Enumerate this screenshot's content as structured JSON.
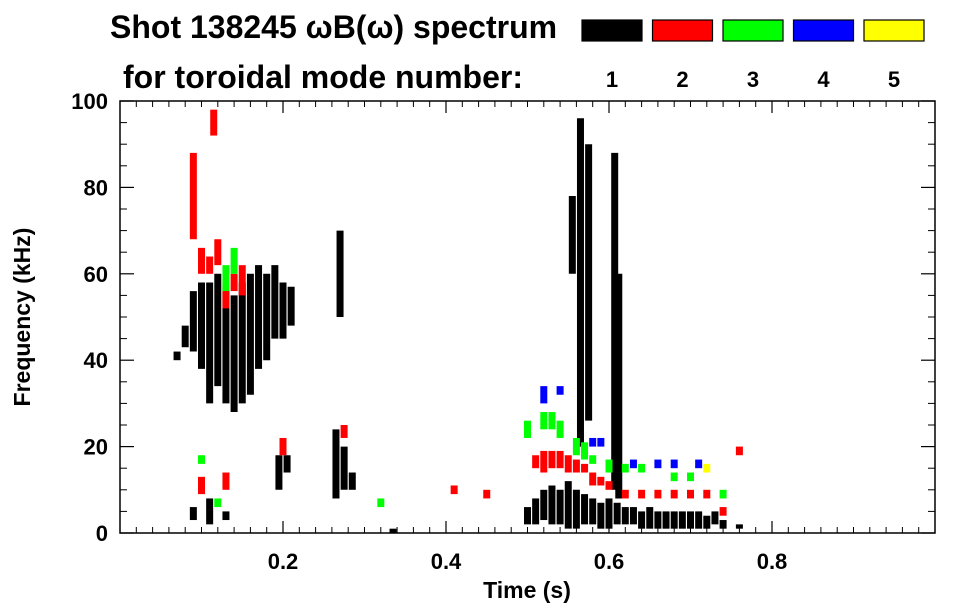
{
  "chart_data": {
    "type": "scatter",
    "title_line1": "Shot 138245 ωB(ω) spectrum",
    "title_line2": "for toroidal mode number:",
    "xlabel": "Time (s)",
    "ylabel": "Frequency (kHz)",
    "xlim": [
      0.0,
      1.0
    ],
    "ylim": [
      0,
      100
    ],
    "x_ticks": [
      0.2,
      0.4,
      0.6,
      0.8
    ],
    "x_tick_labels": [
      "0.2",
      "0.4",
      "0.6",
      "0.8"
    ],
    "y_ticks": [
      0,
      20,
      40,
      60,
      80,
      100
    ],
    "y_tick_labels": [
      "0",
      "20",
      "40",
      "60",
      "80",
      "100"
    ],
    "legend": [
      {
        "label": "1",
        "color": "#000000"
      },
      {
        "label": "2",
        "color": "#ff0000"
      },
      {
        "label": "3",
        "color": "#00ff00"
      },
      {
        "label": "4",
        "color": "#0000ff"
      },
      {
        "label": "5",
        "color": "#ffff00"
      }
    ],
    "series": [
      {
        "name": "1",
        "color": "#000000",
        "segments": [
          [
            0.07,
            40,
            42
          ],
          [
            0.08,
            43,
            48
          ],
          [
            0.09,
            42,
            56
          ],
          [
            0.1,
            38,
            58
          ],
          [
            0.11,
            30,
            58
          ],
          [
            0.12,
            34,
            60
          ],
          [
            0.13,
            30,
            57
          ],
          [
            0.14,
            28,
            55
          ],
          [
            0.15,
            30,
            58
          ],
          [
            0.16,
            32,
            60
          ],
          [
            0.17,
            38,
            62
          ],
          [
            0.18,
            40,
            60
          ],
          [
            0.19,
            45,
            62
          ],
          [
            0.2,
            45,
            58
          ],
          [
            0.21,
            48,
            57
          ],
          [
            0.09,
            3,
            6
          ],
          [
            0.11,
            2,
            8
          ],
          [
            0.13,
            3,
            5
          ],
          [
            0.195,
            10,
            18
          ],
          [
            0.205,
            14,
            18
          ],
          [
            0.265,
            8,
            24
          ],
          [
            0.275,
            10,
            20
          ],
          [
            0.285,
            10,
            14
          ],
          [
            0.27,
            50,
            70
          ],
          [
            0.335,
            0,
            1
          ],
          [
            0.5,
            2,
            6
          ],
          [
            0.51,
            2,
            8
          ],
          [
            0.52,
            3,
            10
          ],
          [
            0.53,
            2,
            11
          ],
          [
            0.54,
            2,
            10
          ],
          [
            0.55,
            1,
            12
          ],
          [
            0.56,
            1,
            10
          ],
          [
            0.57,
            2,
            9
          ],
          [
            0.58,
            2,
            8
          ],
          [
            0.59,
            1,
            7
          ],
          [
            0.6,
            1,
            8
          ],
          [
            0.61,
            2,
            7
          ],
          [
            0.62,
            2,
            6
          ],
          [
            0.63,
            2,
            6
          ],
          [
            0.64,
            1,
            5
          ],
          [
            0.65,
            1,
            6
          ],
          [
            0.66,
            1,
            5
          ],
          [
            0.67,
            1,
            5
          ],
          [
            0.68,
            1,
            5
          ],
          [
            0.69,
            1,
            5
          ],
          [
            0.7,
            1,
            5
          ],
          [
            0.71,
            1,
            5
          ],
          [
            0.72,
            1,
            4
          ],
          [
            0.73,
            2,
            5
          ],
          [
            0.74,
            1,
            3
          ],
          [
            0.76,
            1,
            2
          ],
          [
            0.565,
            20,
            96
          ],
          [
            0.575,
            26,
            90
          ],
          [
            0.607,
            10,
            88
          ],
          [
            0.612,
            8,
            60
          ],
          [
            0.555,
            60,
            78
          ]
        ]
      },
      {
        "name": "2",
        "color": "#ff0000",
        "segments": [
          [
            0.09,
            68,
            88
          ],
          [
            0.1,
            60,
            66
          ],
          [
            0.11,
            60,
            64
          ],
          [
            0.12,
            62,
            68
          ],
          [
            0.13,
            52,
            58
          ],
          [
            0.14,
            56,
            60
          ],
          [
            0.15,
            55,
            62
          ],
          [
            0.1,
            9,
            13
          ],
          [
            0.13,
            10,
            14
          ],
          [
            0.115,
            92,
            98
          ],
          [
            0.2,
            18,
            22
          ],
          [
            0.275,
            22,
            25
          ],
          [
            0.41,
            9,
            11
          ],
          [
            0.45,
            8,
            10
          ],
          [
            0.51,
            15,
            18
          ],
          [
            0.52,
            14,
            19
          ],
          [
            0.53,
            15,
            19
          ],
          [
            0.54,
            15,
            19
          ],
          [
            0.55,
            14,
            18
          ],
          [
            0.56,
            14,
            17
          ],
          [
            0.57,
            14,
            16
          ],
          [
            0.58,
            11,
            14
          ],
          [
            0.59,
            11,
            13
          ],
          [
            0.6,
            10,
            12
          ],
          [
            0.62,
            8,
            10
          ],
          [
            0.64,
            8,
            10
          ],
          [
            0.66,
            8,
            10
          ],
          [
            0.68,
            8,
            10
          ],
          [
            0.7,
            8,
            10
          ],
          [
            0.72,
            8,
            10
          ],
          [
            0.74,
            4,
            6
          ],
          [
            0.76,
            18,
            20
          ]
        ]
      },
      {
        "name": "3",
        "color": "#00ff00",
        "segments": [
          [
            0.1,
            16,
            18
          ],
          [
            0.13,
            56,
            62
          ],
          [
            0.14,
            60,
            66
          ],
          [
            0.12,
            6,
            8
          ],
          [
            0.32,
            6,
            8
          ],
          [
            0.5,
            22,
            26
          ],
          [
            0.52,
            24,
            28
          ],
          [
            0.53,
            24,
            28
          ],
          [
            0.54,
            22,
            26
          ],
          [
            0.56,
            18,
            22
          ],
          [
            0.57,
            17,
            21
          ],
          [
            0.58,
            16,
            18
          ],
          [
            0.6,
            14,
            17
          ],
          [
            0.62,
            14,
            16
          ],
          [
            0.64,
            14,
            16
          ],
          [
            0.68,
            12,
            14
          ],
          [
            0.7,
            12,
            14
          ],
          [
            0.74,
            8,
            10
          ]
        ]
      },
      {
        "name": "4",
        "color": "#0000ff",
        "segments": [
          [
            0.52,
            30,
            34
          ],
          [
            0.54,
            32,
            34
          ],
          [
            0.58,
            20,
            22
          ],
          [
            0.59,
            20,
            22
          ],
          [
            0.63,
            15,
            17
          ],
          [
            0.66,
            15,
            17
          ],
          [
            0.68,
            15,
            17
          ],
          [
            0.71,
            15,
            17
          ]
        ]
      },
      {
        "name": "5",
        "color": "#ffff00",
        "segments": [
          [
            0.72,
            14,
            16
          ]
        ]
      }
    ]
  }
}
